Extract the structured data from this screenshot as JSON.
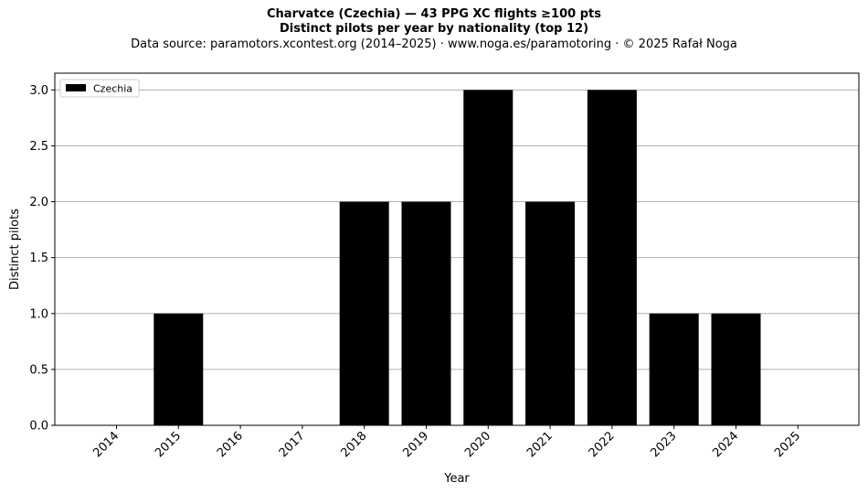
{
  "chart_data": {
    "type": "bar",
    "title": "Charvatce (Czechia)  —  43 PPG XC flights ≥100 pts",
    "subtitle": "Distinct pilots per year by nationality (top 12)",
    "source": "Data source: paramotors.xcontest.org (2014–2025)  ·  www.noga.es/paramotoring  ·  © 2025 Rafał Noga",
    "xlabel": "Year",
    "ylabel": "Distinct pilots",
    "categories": [
      "2014",
      "2015",
      "2016",
      "2017",
      "2018",
      "2019",
      "2020",
      "2021",
      "2022",
      "2023",
      "2024",
      "2025"
    ],
    "series": [
      {
        "name": "Czechia",
        "color": "#000000",
        "values": [
          0,
          1,
          0,
          0,
          2,
          2,
          3,
          2,
          3,
          1,
          1,
          0
        ]
      }
    ],
    "ylim": [
      0,
      3.15
    ],
    "yticks": [
      "0.0",
      "0.5",
      "1.0",
      "1.5",
      "2.0",
      "2.5",
      "3.0"
    ],
    "grid": "y",
    "legend_position": "top-left"
  }
}
